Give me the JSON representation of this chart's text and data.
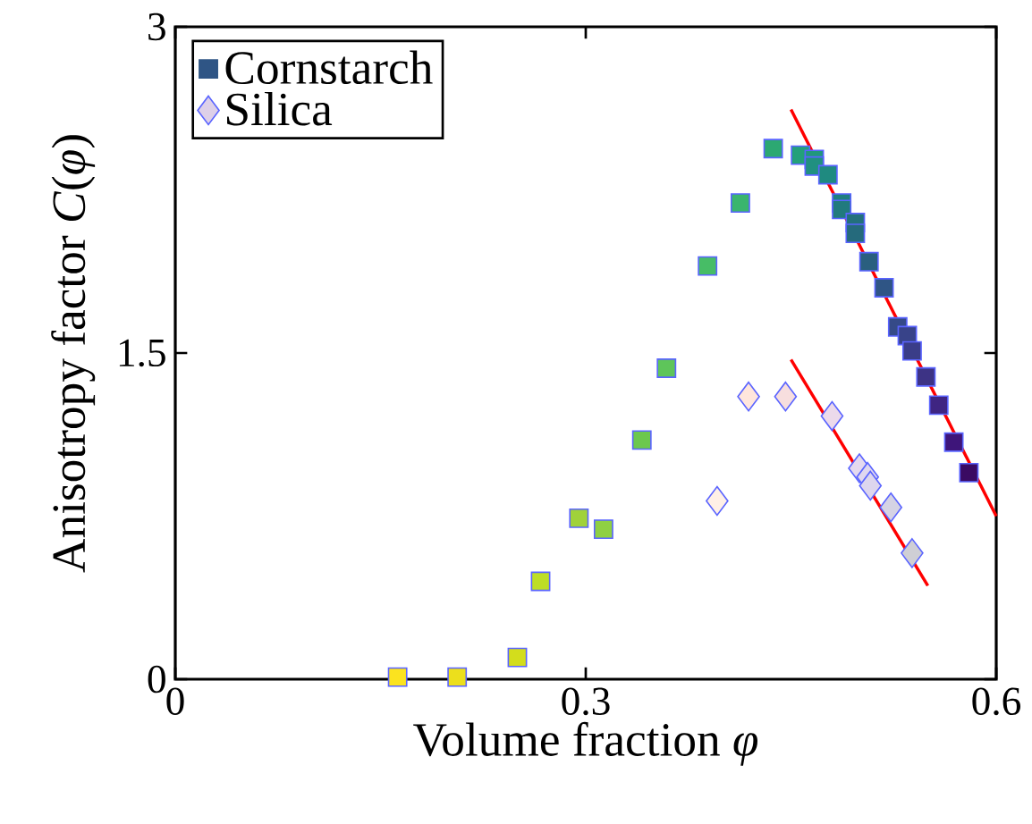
{
  "chart_data": {
    "type": "scatter",
    "xlabel": "Volume fraction *φ*",
    "ylabel": "Anisotropy factor *C*(*φ*)",
    "xlim": [
      0,
      0.6
    ],
    "ylim": [
      0,
      3
    ],
    "xticks": [
      0,
      0.3,
      0.6
    ],
    "yticks": [
      0,
      1.5,
      3
    ],
    "legend": "top left",
    "grid": false,
    "series": [
      {
        "name": "Cornstarch",
        "marker": "square",
        "color": "#2f5585",
        "x": [
          0.1625,
          0.206,
          0.25,
          0.267,
          0.295,
          0.313,
          0.341,
          0.359,
          0.389,
          0.413,
          0.437,
          0.457,
          0.467,
          0.467,
          0.477,
          0.487,
          0.487,
          0.497,
          0.497,
          0.507,
          0.518,
          0.528,
          0.535,
          0.5385,
          0.5486,
          0.558,
          0.569,
          0.58
        ],
        "values": [
          0.01,
          0.01,
          0.1,
          0.45,
          0.74,
          0.69,
          1.1,
          1.43,
          1.9,
          2.19,
          2.44,
          2.41,
          2.39,
          2.36,
          2.32,
          2.19,
          2.16,
          2.1,
          2.05,
          1.92,
          1.8,
          1.62,
          1.58,
          1.51,
          1.39,
          1.26,
          1.09,
          0.95
        ],
        "colors": [
          "#fbe31f",
          "#ecdf1c",
          "#d3dd1c",
          "#bede26",
          "#a0d23a",
          "#8fd042",
          "#6cc84e",
          "#5ec55a",
          "#47bd66",
          "#3ab56e",
          "#2ca872",
          "#23a07a",
          "#21977c",
          "#209080",
          "#1f8a80",
          "#1f7f7f",
          "#217a7e",
          "#23707c",
          "#256a7c",
          "#2a5f7f",
          "#2f5585",
          "#354a88",
          "#384389",
          "#3a3d88",
          "#3d3385",
          "#3f2582",
          "#3e157a",
          "#3a0a63"
        ]
      },
      {
        "name": "Silica",
        "marker": "diamond",
        "color": "#ddd0e8",
        "x": [
          0.396,
          0.419,
          0.446,
          0.48,
          0.5,
          0.506,
          0.508,
          0.523,
          0.5385
        ],
        "values": [
          0.82,
          1.3,
          1.3,
          1.21,
          0.97,
          0.93,
          0.89,
          0.79,
          0.58
        ],
        "colors": [
          "#fff0e6",
          "#ffe6dc",
          "#f7dede",
          "#ecdaeb",
          "#e4d9ef",
          "#e0d7ef",
          "#ddd6ee",
          "#d5d3e4",
          "#cfcfd5"
        ]
      },
      {
        "type": "line",
        "marker": "none",
        "color": "#ff0000",
        "x": [
          0.45,
          0.6
        ],
        "values": [
          2.62,
          0.75
        ]
      },
      {
        "type": "line",
        "marker": "none",
        "color": "#ff0000",
        "x": [
          0.45,
          0.55
        ],
        "values": [
          1.47,
          0.43
        ]
      }
    ]
  }
}
